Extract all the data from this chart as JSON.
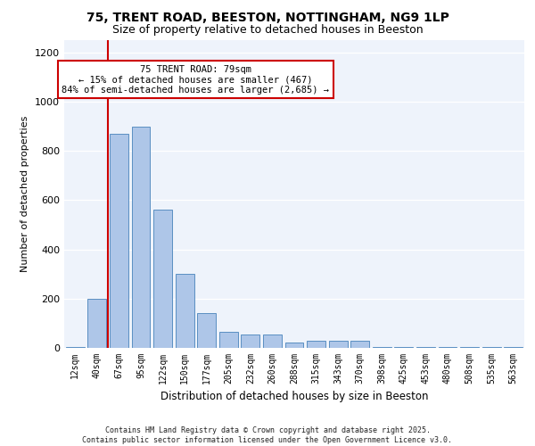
{
  "title1": "75, TRENT ROAD, BEESTON, NOTTINGHAM, NG9 1LP",
  "title2": "Size of property relative to detached houses in Beeston",
  "xlabel": "Distribution of detached houses by size in Beeston",
  "ylabel": "Number of detached properties",
  "categories": [
    "12sqm",
    "40sqm",
    "67sqm",
    "95sqm",
    "122sqm",
    "150sqm",
    "177sqm",
    "205sqm",
    "232sqm",
    "260sqm",
    "288sqm",
    "315sqm",
    "343sqm",
    "370sqm",
    "398sqm",
    "425sqm",
    "453sqm",
    "480sqm",
    "508sqm",
    "535sqm",
    "563sqm"
  ],
  "values": [
    5,
    200,
    870,
    900,
    560,
    300,
    140,
    65,
    55,
    55,
    20,
    30,
    28,
    28,
    5,
    5,
    5,
    5,
    5,
    5,
    5
  ],
  "bar_color": "#aec6e8",
  "bar_edge_color": "#5a8fc2",
  "vline_idx": 2,
  "vline_color": "#cc0000",
  "annotation_text": "75 TRENT ROAD: 79sqm\n← 15% of detached houses are smaller (467)\n84% of semi-detached houses are larger (2,685) →",
  "annotation_box_facecolor": "#ffffff",
  "annotation_box_edgecolor": "#cc0000",
  "footer": "Contains HM Land Registry data © Crown copyright and database right 2025.\nContains public sector information licensed under the Open Government Licence v3.0.",
  "ylim": [
    0,
    1250
  ],
  "yticks": [
    0,
    200,
    400,
    600,
    800,
    1000,
    1200
  ],
  "bg_color": "#eef3fb"
}
